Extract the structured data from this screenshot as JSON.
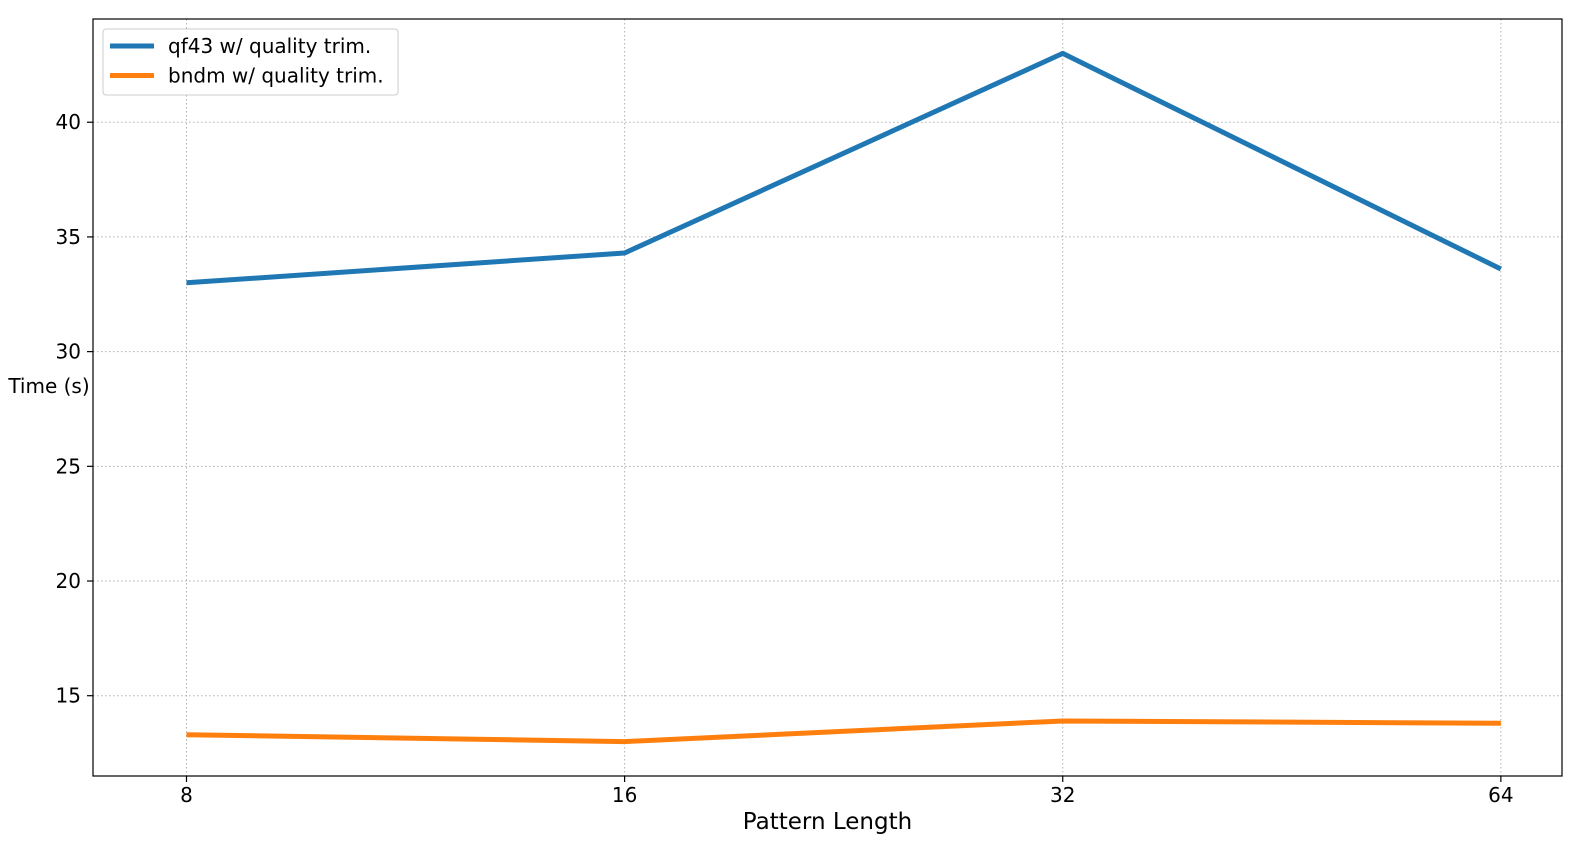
{
  "chart_data": {
    "type": "line",
    "title": "",
    "xlabel": "Pattern Length",
    "ylabel": "Time (s)",
    "x_scale": "log2",
    "categories": [
      "8",
      "16",
      "32",
      "64"
    ],
    "x": [
      8,
      16,
      32,
      64
    ],
    "xlim": [
      6.9,
      70.5
    ],
    "ylim": [
      11.5,
      44.5
    ],
    "yticks": [
      15,
      20,
      25,
      30,
      35,
      40
    ],
    "ytick_labels": [
      "15",
      "20",
      "25",
      "30",
      "35",
      "40"
    ],
    "grid": true,
    "legend_position": "top-left",
    "series": [
      {
        "name": "qf43 w/ quality trim.",
        "color": "#1f77b4",
        "values": [
          33.0,
          34.3,
          43.0,
          33.6
        ]
      },
      {
        "name": "bndm w/ quality trim.",
        "color": "#ff7f0e",
        "values": [
          13.3,
          13.0,
          13.9,
          13.8
        ]
      }
    ]
  }
}
